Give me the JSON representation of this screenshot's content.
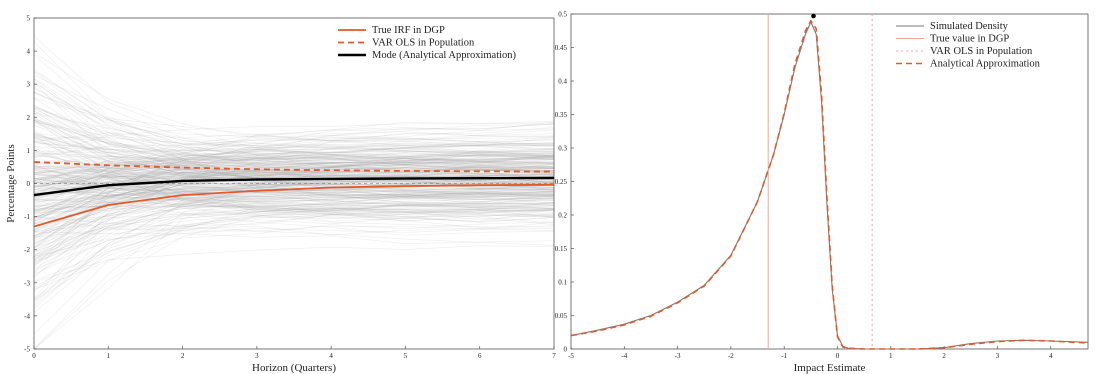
{
  "chart_data": [
    {
      "type": "line",
      "title": "",
      "xlabel": "Horizon (Quarters)",
      "ylabel": "Percentage Points",
      "xlim": [
        0,
        7
      ],
      "ylim": [
        -5,
        5
      ],
      "xticks": [
        "0",
        "1",
        "2",
        "3",
        "4",
        "5",
        "6",
        "7"
      ],
      "yticks": [
        "-5",
        "-4",
        "-3",
        "-2",
        "-1",
        "0",
        "1",
        "2",
        "3",
        "4",
        "5"
      ],
      "grid": false,
      "legend_position": "top-right",
      "x": [
        0,
        1,
        2,
        3,
        4,
        5,
        6,
        7
      ],
      "series": [
        {
          "name": "True IRF in DGP",
          "style": "solid",
          "color": "#e35a26",
          "values": [
            -1.3,
            -0.65,
            -0.35,
            -0.22,
            -0.12,
            -0.08,
            -0.05,
            -0.04
          ]
        },
        {
          "name": "VAR OLS in Population",
          "style": "dashed",
          "color": "#e35a26",
          "values": [
            0.65,
            0.55,
            0.48,
            0.43,
            0.4,
            0.38,
            0.37,
            0.36
          ]
        },
        {
          "name": "Mode (Analytical Approximation)",
          "style": "solid",
          "color": "#000000",
          "values": [
            -0.35,
            -0.05,
            0.08,
            0.12,
            0.14,
            0.15,
            0.16,
            0.17
          ]
        }
      ],
      "background": "simulated IRF draws (light gray)"
    },
    {
      "type": "line",
      "title": "",
      "xlabel": "Impact Estimate",
      "ylabel": "",
      "xlim": [
        -5,
        4.7
      ],
      "ylim": [
        0,
        0.5
      ],
      "xticks": [
        "-5",
        "-4",
        "-3",
        "-2",
        "-1",
        "0",
        "1",
        "2",
        "3",
        "4"
      ],
      "yticks": [
        "0",
        "0.05",
        "0.1",
        "0.15",
        "0.2",
        "0.25",
        "0.3",
        "0.35",
        "0.4",
        "0.45",
        "0.5"
      ],
      "grid": false,
      "legend_position": "top-right",
      "series": [
        {
          "name": "Simulated Density",
          "style": "solid",
          "color": "#7a7a7a",
          "x": [
            -5,
            -4.5,
            -4,
            -3.5,
            -3,
            -2.5,
            -2,
            -1.5,
            -1.2,
            -1,
            -0.8,
            -0.6,
            -0.5,
            -0.4,
            -0.3,
            -0.2,
            -0.1,
            0,
            0.1,
            0.2,
            0.5,
            1,
            1.5,
            2,
            2.5,
            3,
            3.5,
            4,
            4.7
          ],
          "values": [
            0.02,
            0.028,
            0.037,
            0.05,
            0.07,
            0.095,
            0.14,
            0.22,
            0.29,
            0.35,
            0.42,
            0.47,
            0.488,
            0.47,
            0.37,
            0.22,
            0.09,
            0.02,
            0.004,
            0.001,
            0,
            0,
            0,
            0.002,
            0.008,
            0.012,
            0.013,
            0.012,
            0.01
          ]
        },
        {
          "name": "True value in DGP",
          "style": "solid",
          "vline": -1.3,
          "color": "#f3a79a"
        },
        {
          "name": "VAR OLS in Population",
          "style": "dotted",
          "vline": 0.65,
          "color": "#f2a0b5"
        },
        {
          "name": "Analytical Approximation",
          "style": "dashed",
          "color": "#e35a26",
          "x": [
            -5,
            -4.5,
            -4,
            -3.5,
            -3,
            -2.5,
            -2,
            -1.5,
            -1.2,
            -1,
            -0.8,
            -0.6,
            -0.5,
            -0.4,
            -0.3,
            -0.2,
            -0.1,
            0,
            0.1,
            0.2,
            0.5,
            1,
            1.5,
            2,
            2.5,
            3,
            3.5,
            4,
            4.7
          ],
          "values": [
            0.02,
            0.027,
            0.036,
            0.049,
            0.069,
            0.094,
            0.139,
            0.22,
            0.29,
            0.352,
            0.425,
            0.475,
            0.49,
            0.478,
            0.38,
            0.23,
            0.095,
            0.018,
            0.003,
            0.001,
            0,
            0,
            0,
            0.002,
            0.007,
            0.011,
            0.013,
            0.012,
            0.009
          ]
        }
      ],
      "marker": {
        "x": -0.45,
        "y": 0.497,
        "color": "#000000"
      }
    }
  ]
}
